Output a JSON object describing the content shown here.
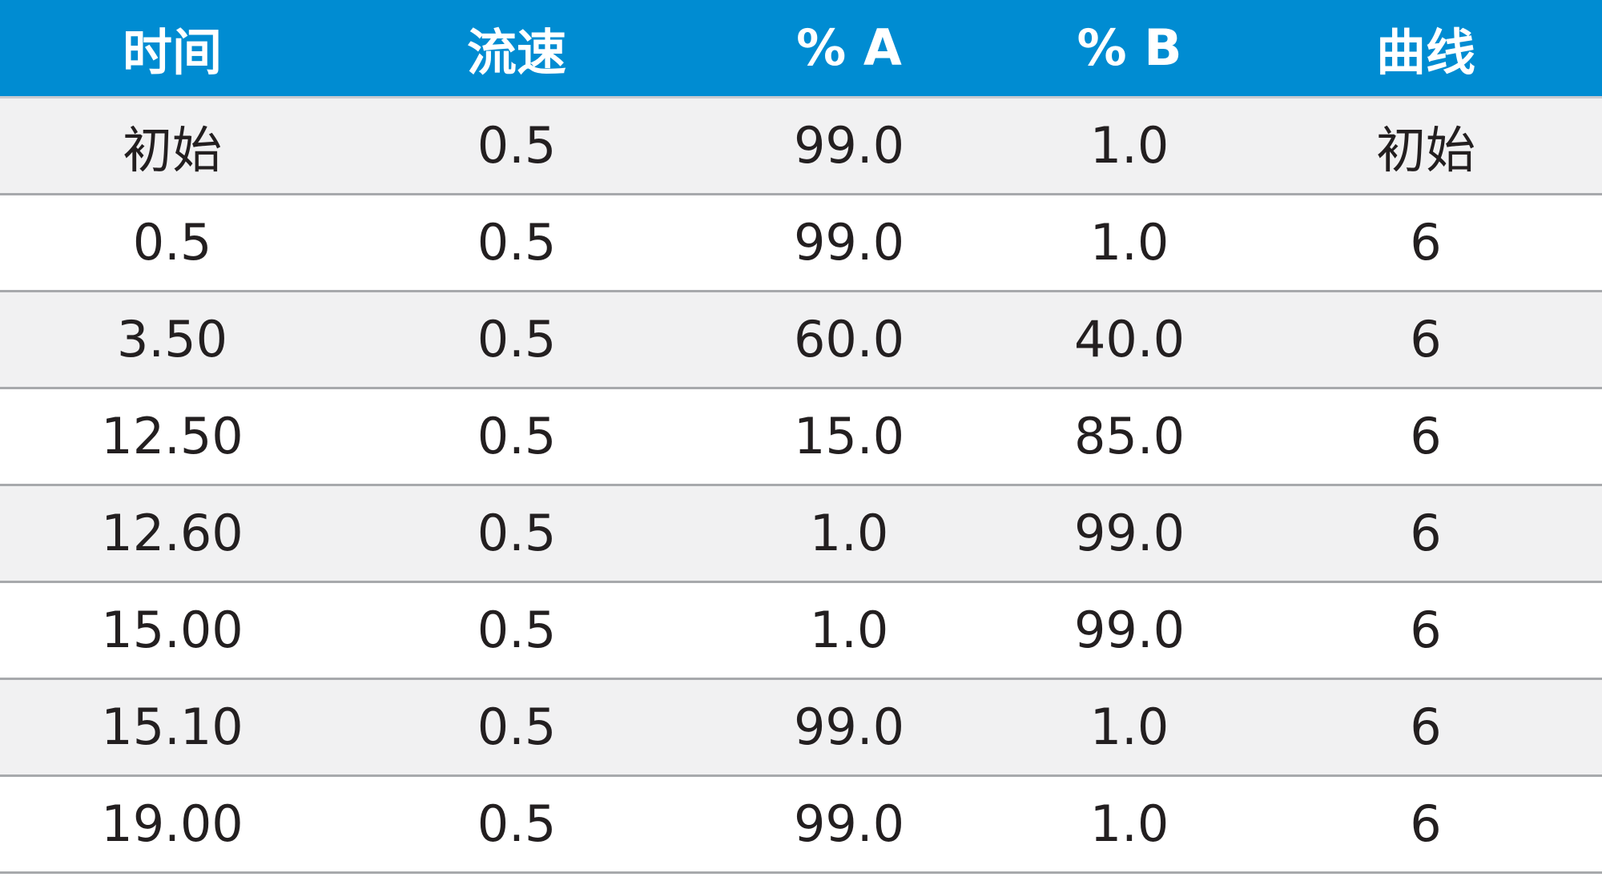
{
  "table": {
    "headers": [
      "时间",
      "流速",
      "% A",
      "% B",
      "曲线"
    ],
    "rows": [
      [
        "初始",
        "0.5",
        "99.0",
        "1.0",
        "初始"
      ],
      [
        "0.5",
        "0.5",
        "99.0",
        "1.0",
        "6"
      ],
      [
        "3.50",
        "0.5",
        "60.0",
        "40.0",
        "6"
      ],
      [
        "12.50",
        "0.5",
        "15.0",
        "85.0",
        "6"
      ],
      [
        "12.60",
        "0.5",
        "1.0",
        "99.0",
        "6"
      ],
      [
        "15.00",
        "0.5",
        "1.0",
        "99.0",
        "6"
      ],
      [
        "15.10",
        "0.5",
        "99.0",
        "1.0",
        "6"
      ],
      [
        "19.00",
        "0.5",
        "99.0",
        "1.0",
        "6"
      ]
    ]
  },
  "colors": {
    "header_background": "#008cd2",
    "header_text": "#ffffff",
    "row_alt_background": "#f1f1f2",
    "row_background": "#ffffff",
    "divider": "#a7a9ac",
    "text": "#231f20"
  }
}
